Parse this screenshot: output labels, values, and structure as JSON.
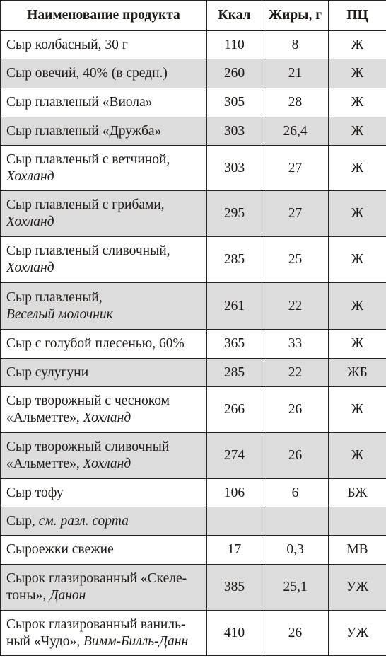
{
  "headers": {
    "name": "Наименование продукта",
    "kcal": "Ккал",
    "fat": "Жиры, г",
    "pc": "ПЦ"
  },
  "rows": [
    {
      "line1": "Сыр колбасный, 30 г",
      "kcal": "110",
      "fat": "8",
      "pc": "Ж"
    },
    {
      "line1": "Сыр овечий, 40% (в средн.)",
      "kcal": "260",
      "fat": "21",
      "pc": "Ж"
    },
    {
      "line1": "Сыр плавленый «Виола»",
      "kcal": "305",
      "fat": "28",
      "pc": "Ж"
    },
    {
      "line1": "Сыр плавленый «Дружба»",
      "kcal": "303",
      "fat": "26,4",
      "pc": "Ж"
    },
    {
      "line1": "Сыр плавленый с ветчиной,",
      "line2_italic": "Хохланд",
      "kcal": "303",
      "fat": "27",
      "pc": "Ж"
    },
    {
      "line1": "Сыр плавленый с грибами,",
      "line2_italic": "Хохланд",
      "kcal": "295",
      "fat": "27",
      "pc": "Ж"
    },
    {
      "line1": "Сыр плавленый сливочный,",
      "line2_italic": "Хохланд",
      "kcal": "285",
      "fat": "25",
      "pc": "Ж"
    },
    {
      "line1": "Сыр плавленый,",
      "line2_italic": "Веселый молочник",
      "kcal": "261",
      "fat": "22",
      "pc": "Ж"
    },
    {
      "line1": "Сыр с голубой плесенью, 60%",
      "kcal": "365",
      "fat": "33",
      "pc": "Ж"
    },
    {
      "line1": "Сыр сулугуни",
      "kcal": "285",
      "fat": "22",
      "pc": "ЖБ"
    },
    {
      "line1": "Сыр творожный с чесноком",
      "line2": "«Альметте», ",
      "line2_italic": "Хохланд",
      "kcal": "266",
      "fat": "26",
      "pc": "Ж"
    },
    {
      "line1": "Сыр творожный сливочный",
      "line2": "«Альметте», ",
      "line2_italic": "Хохланд",
      "kcal": "274",
      "fat": "26",
      "pc": "Ж"
    },
    {
      "line1": "Сыр тофу",
      "kcal": "106",
      "fat": "6",
      "pc": "БЖ"
    },
    {
      "line1": "Сыр, ",
      "line1_italic": "см. разл. сорта",
      "kcal": "",
      "fat": "",
      "pc": ""
    },
    {
      "line1": "Сыроежки свежие",
      "kcal": "17",
      "fat": "0,3",
      "pc": "МВ"
    },
    {
      "line1": "Сырок глазированный «Скеле-",
      "line2": "тоны», ",
      "line2_italic": "Данон",
      "kcal": "385",
      "fat": "25,1",
      "pc": "УЖ"
    },
    {
      "line1": "Сырок глазированный ваниль-",
      "line2": "ный «Чудо», ",
      "line2_italic": "Вимм-Билль-Данн",
      "kcal": "410",
      "fat": "26",
      "pc": "УЖ"
    }
  ]
}
